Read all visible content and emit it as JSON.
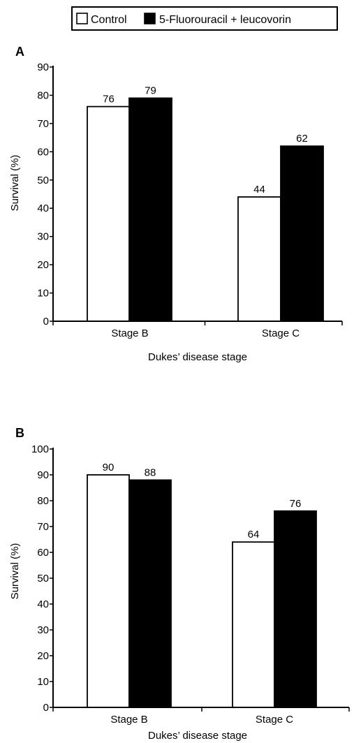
{
  "legend": {
    "items": [
      {
        "label": "Control",
        "fill": "#ffffff"
      },
      {
        "label": "5-Fluorouracil + leucovorin",
        "fill": "#000000"
      }
    ]
  },
  "chart_data": [
    {
      "type": "bar",
      "panel_label": "A",
      "categories": [
        "Stage B",
        "Stage C"
      ],
      "series": [
        {
          "name": "Control",
          "values": [
            76,
            44
          ],
          "color": "#ffffff"
        },
        {
          "name": "5-Fluorouracil + leucovorin",
          "values": [
            79,
            62
          ],
          "color": "#000000"
        }
      ],
      "data_labels": [
        [
          "76",
          "44"
        ],
        [
          "79",
          "62"
        ]
      ],
      "yticks": [
        "0",
        "10",
        "20",
        "30",
        "40",
        "50",
        "60",
        "70",
        "80",
        "90"
      ],
      "ylim": [
        0,
        90
      ],
      "ylabel": "Survival (%)",
      "xlabel": "Dukes’ disease stage",
      "grid": false,
      "legend_position": "top"
    },
    {
      "type": "bar",
      "panel_label": "B",
      "categories": [
        "Stage B",
        "Stage C"
      ],
      "series": [
        {
          "name": "Control",
          "values": [
            90,
            64
          ],
          "color": "#ffffff"
        },
        {
          "name": "5-Fluorouracil + leucovorin",
          "values": [
            88,
            76
          ],
          "color": "#000000"
        }
      ],
      "data_labels": [
        [
          "90",
          "64"
        ],
        [
          "88",
          "76"
        ]
      ],
      "yticks": [
        "0",
        "10",
        "20",
        "30",
        "40",
        "50",
        "60",
        "70",
        "80",
        "90",
        "100"
      ],
      "ylim": [
        0,
        100
      ],
      "ylabel": "Survival (%)",
      "xlabel": "Dukes’ disease stage",
      "grid": false,
      "legend_position": "top"
    }
  ]
}
